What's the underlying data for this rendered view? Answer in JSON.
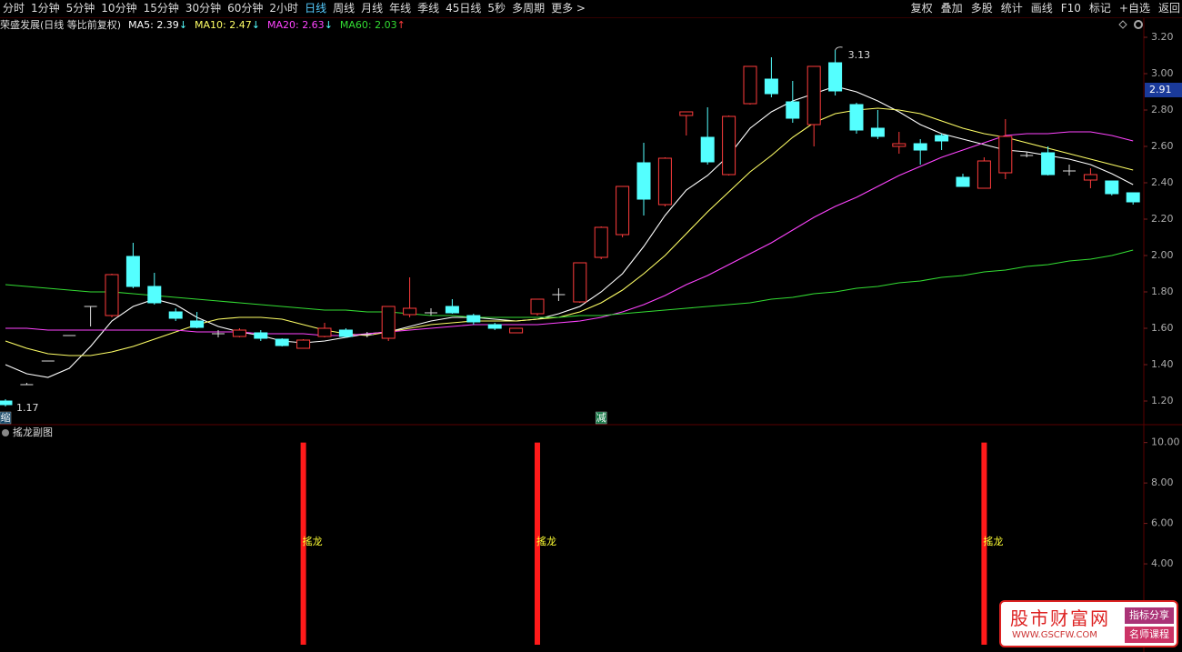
{
  "toolbar": {
    "left": [
      "分时",
      "1分钟",
      "5分钟",
      "10分钟",
      "15分钟",
      "30分钟",
      "60分钟",
      "2小时",
      "日线",
      "周线",
      "月线",
      "年线",
      "季线",
      "45日线",
      "5秒",
      "多周期",
      "更多 >"
    ],
    "selected": 8,
    "right": [
      "复权",
      "叠加",
      "多股",
      "统计",
      "画线",
      "F10",
      "标记",
      "+自选",
      "返回"
    ]
  },
  "chart_data": {
    "type": "candlestick",
    "title": "荣盛发展(日线 等比前复权)",
    "ylim": [
      1.1,
      3.3
    ],
    "yticks": [
      {
        "value": 3.2,
        "label": "3.20"
      },
      {
        "value": 3.0,
        "label": "3.00"
      },
      {
        "value": 2.8,
        "label": "2.80"
      },
      {
        "value": 2.6,
        "label": "2.60"
      },
      {
        "value": 2.4,
        "label": "2.40"
      },
      {
        "value": 2.2,
        "label": "2.20"
      },
      {
        "value": 2.0,
        "label": "2.00"
      },
      {
        "value": 1.8,
        "label": "1.80"
      },
      {
        "value": 1.6,
        "label": "1.60"
      },
      {
        "value": 1.4,
        "label": "1.40"
      },
      {
        "value": 1.2,
        "label": "1.20"
      }
    ],
    "current_price": 2.91,
    "up_color": "#ff3c3c",
    "down_color": "#54ffff",
    "flat_color": "#dddddd",
    "open": [
      1.2,
      1.29,
      1.42,
      1.56,
      1.72,
      1.67,
      1.995,
      1.83,
      1.69,
      1.64,
      1.57,
      1.555,
      1.575,
      1.54,
      1.49,
      1.555,
      1.59,
      1.565,
      1.545,
      1.675,
      1.685,
      1.72,
      1.67,
      1.62,
      1.575,
      1.68,
      1.785,
      1.745,
      1.99,
      2.115,
      2.51,
      2.28,
      2.77,
      2.65,
      2.445,
      2.835,
      2.97,
      2.845,
      2.72,
      3.06,
      2.83,
      2.7,
      2.6,
      2.615,
      2.66,
      2.43,
      2.37,
      2.455,
      2.55,
      2.565,
      2.465,
      2.415,
      2.41,
      2.345
    ],
    "close": [
      1.18,
      1.29,
      1.42,
      1.56,
      1.72,
      1.895,
      1.83,
      1.74,
      1.655,
      1.605,
      1.57,
      1.59,
      1.545,
      1.505,
      1.535,
      1.6,
      1.555,
      1.565,
      1.72,
      1.71,
      1.685,
      1.685,
      1.635,
      1.6,
      1.6,
      1.76,
      1.785,
      1.96,
      2.155,
      2.38,
      2.31,
      2.535,
      2.79,
      2.515,
      2.765,
      3.04,
      2.89,
      2.755,
      3.04,
      2.905,
      2.69,
      2.655,
      2.615,
      2.58,
      2.63,
      2.38,
      2.52,
      2.655,
      2.55,
      2.445,
      2.465,
      2.445,
      2.34,
      2.295
    ],
    "high": [
      1.21,
      1.3,
      1.42,
      1.56,
      1.72,
      1.9,
      2.07,
      1.905,
      1.71,
      1.69,
      1.59,
      1.6,
      1.59,
      1.545,
      1.54,
      1.63,
      1.6,
      1.58,
      1.72,
      1.88,
      1.71,
      1.76,
      1.68,
      1.63,
      1.6,
      1.76,
      1.82,
      1.96,
      2.16,
      2.38,
      2.62,
      2.54,
      2.79,
      2.815,
      2.77,
      3.04,
      3.09,
      2.96,
      3.04,
      3.13,
      2.84,
      2.8,
      2.68,
      2.64,
      2.67,
      2.45,
      2.54,
      2.75,
      2.57,
      2.6,
      2.5,
      2.48,
      2.41,
      2.34
    ],
    "low": [
      1.17,
      1.29,
      1.42,
      1.56,
      1.61,
      1.66,
      1.82,
      1.73,
      1.64,
      1.6,
      1.55,
      1.55,
      1.53,
      1.5,
      1.49,
      1.55,
      1.55,
      1.55,
      1.53,
      1.66,
      1.67,
      1.68,
      1.62,
      1.59,
      1.575,
      1.67,
      1.75,
      1.74,
      1.98,
      2.1,
      2.22,
      2.27,
      2.66,
      2.5,
      2.44,
      2.83,
      2.87,
      2.73,
      2.6,
      2.88,
      2.67,
      2.64,
      2.56,
      2.5,
      2.58,
      2.38,
      2.37,
      2.42,
      2.54,
      2.44,
      2.44,
      2.37,
      2.33,
      2.28
    ],
    "series": [
      {
        "name": "MA5",
        "color": "#ffffff",
        "trend": "↓",
        "trend_color": "#54ffff",
        "values": [
          1.4,
          1.35,
          1.33,
          1.38,
          1.5,
          1.64,
          1.72,
          1.76,
          1.73,
          1.66,
          1.61,
          1.58,
          1.56,
          1.53,
          1.52,
          1.53,
          1.55,
          1.57,
          1.58,
          1.61,
          1.64,
          1.66,
          1.66,
          1.65,
          1.64,
          1.65,
          1.68,
          1.72,
          1.8,
          1.9,
          2.05,
          2.22,
          2.36,
          2.44,
          2.55,
          2.7,
          2.79,
          2.85,
          2.89,
          2.93,
          2.9,
          2.85,
          2.79,
          2.72,
          2.67,
          2.64,
          2.61,
          2.58,
          2.57,
          2.55,
          2.53,
          2.5,
          2.45,
          2.39
        ]
      },
      {
        "name": "MA10",
        "color": "#ffff66",
        "trend": "↓",
        "trend_color": "#54ffff",
        "values": [
          1.53,
          1.49,
          1.46,
          1.45,
          1.45,
          1.47,
          1.5,
          1.54,
          1.58,
          1.62,
          1.65,
          1.66,
          1.66,
          1.65,
          1.62,
          1.59,
          1.57,
          1.56,
          1.58,
          1.6,
          1.62,
          1.63,
          1.64,
          1.64,
          1.64,
          1.65,
          1.66,
          1.69,
          1.74,
          1.81,
          1.9,
          2.0,
          2.12,
          2.24,
          2.35,
          2.46,
          2.55,
          2.65,
          2.73,
          2.78,
          2.8,
          2.81,
          2.8,
          2.78,
          2.74,
          2.7,
          2.67,
          2.65,
          2.62,
          2.59,
          2.56,
          2.53,
          2.5,
          2.47
        ]
      },
      {
        "name": "MA20",
        "color": "#ff44ff",
        "trend": "↓",
        "trend_color": "#54ffff",
        "values": [
          1.6,
          1.6,
          1.59,
          1.59,
          1.59,
          1.59,
          1.59,
          1.59,
          1.59,
          1.58,
          1.58,
          1.58,
          1.57,
          1.57,
          1.57,
          1.56,
          1.56,
          1.57,
          1.58,
          1.59,
          1.6,
          1.61,
          1.62,
          1.62,
          1.62,
          1.62,
          1.63,
          1.64,
          1.66,
          1.69,
          1.73,
          1.78,
          1.84,
          1.89,
          1.95,
          2.01,
          2.07,
          2.14,
          2.21,
          2.27,
          2.32,
          2.38,
          2.44,
          2.49,
          2.54,
          2.58,
          2.62,
          2.66,
          2.67,
          2.67,
          2.68,
          2.68,
          2.66,
          2.63
        ]
      },
      {
        "name": "MA60",
        "color": "#33dd33",
        "trend": "↑",
        "trend_color": "#ff3c3c",
        "values": [
          1.84,
          1.83,
          1.82,
          1.81,
          1.8,
          1.8,
          1.79,
          1.78,
          1.77,
          1.76,
          1.75,
          1.74,
          1.73,
          1.72,
          1.71,
          1.7,
          1.7,
          1.69,
          1.69,
          1.68,
          1.67,
          1.67,
          1.66,
          1.66,
          1.66,
          1.66,
          1.66,
          1.67,
          1.67,
          1.68,
          1.69,
          1.7,
          1.71,
          1.72,
          1.73,
          1.74,
          1.76,
          1.77,
          1.79,
          1.8,
          1.82,
          1.83,
          1.85,
          1.86,
          1.88,
          1.89,
          1.91,
          1.92,
          1.94,
          1.95,
          1.97,
          1.98,
          2.0,
          2.03
        ]
      }
    ],
    "markers": [
      {
        "text": "缩",
        "index": 0
      },
      {
        "text": "减",
        "index": 28
      }
    ],
    "sub_chart": {
      "title": "搖龙副图",
      "ylim": [
        0,
        10.3
      ],
      "yticks": [
        {
          "value": 10,
          "label": "10.00"
        },
        {
          "value": 8,
          "label": "8.00"
        },
        {
          "value": 6,
          "label": "6.00"
        },
        {
          "value": 4,
          "label": "4.00"
        }
      ],
      "color": "#ff1a1a",
      "label_color": "#ffff33",
      "bars": [
        {
          "x": 14,
          "value": 10,
          "label": "搖龙"
        },
        {
          "x": 25,
          "value": 10,
          "label": "搖龙"
        },
        {
          "x": 46,
          "value": 10,
          "label": "搖龙"
        }
      ]
    }
  },
  "watermark": {
    "name": "股市财富网",
    "url": "WWW.GSCFW.COM",
    "tags": [
      "指标分享",
      "名师课程"
    ]
  }
}
